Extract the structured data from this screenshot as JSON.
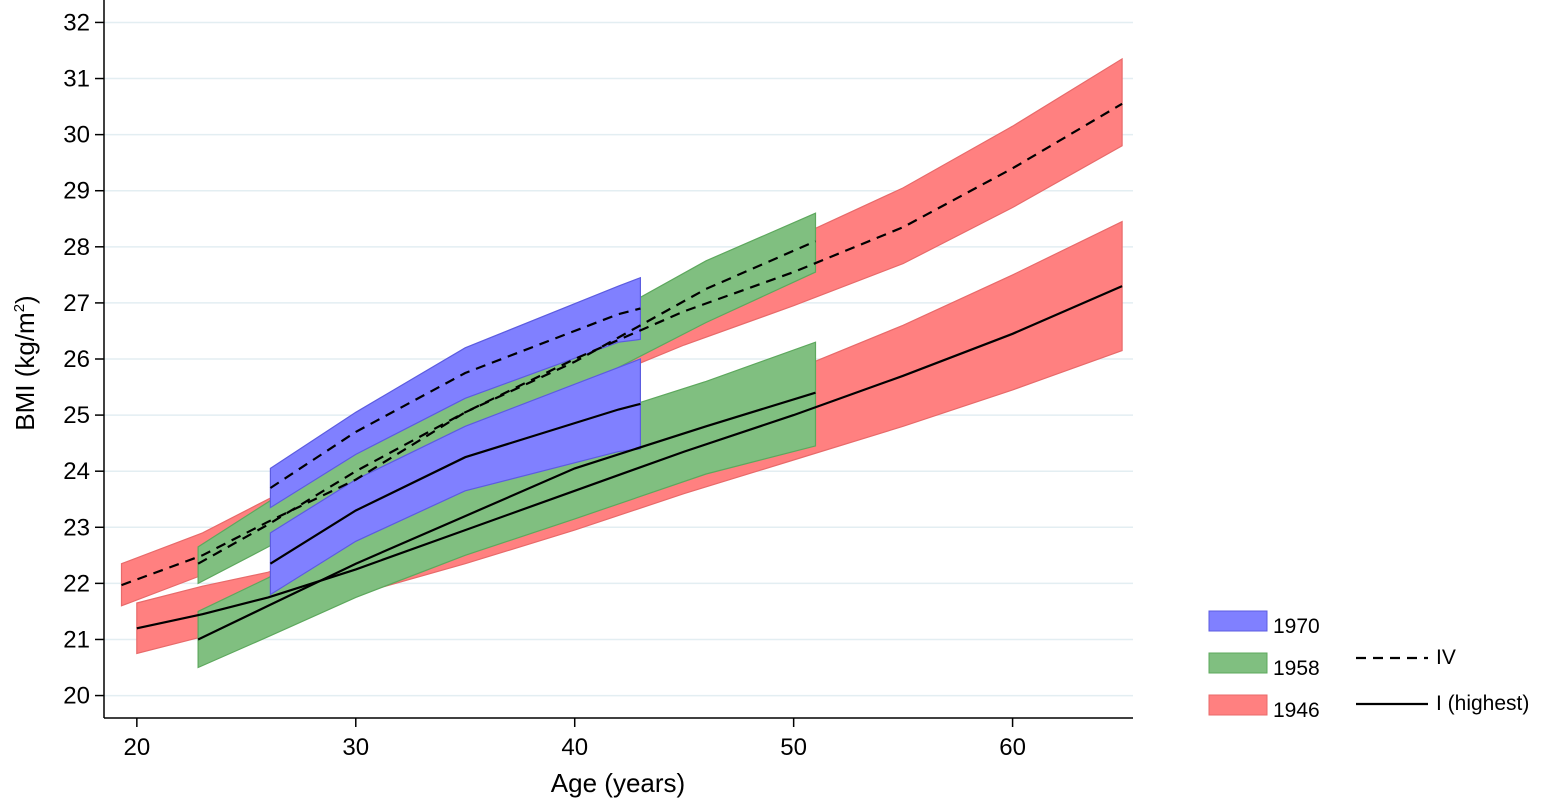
{
  "chart_data": {
    "type": "area",
    "xlabel": "Age (years)",
    "ylabel_main": "BMI (kg/m",
    "ylabel_sup": "2",
    "ylabel_close": ")",
    "xlim": [
      18.5,
      65.5
    ],
    "ylim": [
      19.6,
      32.4
    ],
    "xticks": [
      20,
      30,
      40,
      50,
      60
    ],
    "yticks": [
      20,
      21,
      22,
      23,
      24,
      25,
      26,
      27,
      28,
      29,
      30,
      31,
      32
    ],
    "grid": true,
    "legend_position": "bottom-right",
    "cohorts": [
      {
        "name": "1946",
        "color": "#ff8080",
        "edge": "#e86a6a",
        "bands": [
          {
            "line": "dashed",
            "x": [
              19.3,
              23,
              26,
              30,
              35,
              40,
              45,
              50,
              55,
              60,
              65
            ],
            "mid": [
              21.97,
              22.5,
              23.1,
              23.85,
              25.05,
              26.0,
              26.85,
              27.55,
              28.35,
              29.4,
              30.55
            ],
            "lower": [
              21.6,
              22.15,
              22.7,
              23.45,
              24.55,
              25.45,
              26.25,
              26.95,
              27.7,
              28.7,
              29.8
            ],
            "upper": [
              22.35,
              22.9,
              23.5,
              24.25,
              25.55,
              26.55,
              27.45,
              28.15,
              29.05,
              30.15,
              31.35
            ]
          },
          {
            "line": "solid",
            "x": [
              20,
              23,
              26,
              30,
              35,
              40,
              45,
              50,
              55,
              60,
              65
            ],
            "mid": [
              21.2,
              21.45,
              21.75,
              22.25,
              22.95,
              23.65,
              24.35,
              25.0,
              25.7,
              26.45,
              27.3
            ],
            "lower": [
              20.75,
              21.05,
              21.35,
              21.8,
              22.35,
              22.95,
              23.6,
              24.2,
              24.8,
              25.45,
              26.15
            ],
            "upper": [
              21.65,
              21.95,
              22.2,
              22.75,
              23.55,
              24.4,
              25.15,
              25.8,
              26.6,
              27.5,
              28.45
            ]
          }
        ]
      },
      {
        "name": "1958",
        "color": "#80bf80",
        "edge": "#5da85d",
        "bands": [
          {
            "line": "dashed",
            "x": [
              22.8,
              26,
              30,
              35,
              40,
              46,
              51
            ],
            "mid": [
              22.35,
              23.05,
              24.0,
              25.05,
              25.95,
              27.25,
              28.1
            ],
            "lower": [
              22.0,
              22.65,
              23.55,
              24.6,
              25.45,
              26.65,
              27.55
            ],
            "upper": [
              22.65,
              23.45,
              24.5,
              25.45,
              26.45,
              27.75,
              28.6
            ]
          },
          {
            "line": "solid",
            "x": [
              22.8,
              26,
              30,
              35,
              40,
              46,
              51
            ],
            "mid": [
              21.0,
              21.6,
              22.35,
              23.2,
              24.05,
              24.8,
              25.4
            ],
            "lower": [
              20.5,
              21.05,
              21.75,
              22.5,
              23.15,
              23.95,
              24.45
            ],
            "upper": [
              21.5,
              22.1,
              22.95,
              23.85,
              24.85,
              25.6,
              26.3
            ]
          }
        ]
      },
      {
        "name": "1970",
        "color": "#8080ff",
        "edge": "#5c5ce0",
        "bands": [
          {
            "line": "dashed",
            "x": [
              26.1,
              30,
              35,
              42,
              43
            ],
            "mid": [
              23.7,
              24.7,
              25.75,
              26.8,
              26.9
            ],
            "lower": [
              23.35,
              24.3,
              25.3,
              26.3,
              26.35
            ],
            "upper": [
              24.05,
              25.05,
              26.2,
              27.3,
              27.45
            ]
          },
          {
            "line": "solid",
            "x": [
              26.1,
              30,
              35,
              42,
              43
            ],
            "mid": [
              22.35,
              23.3,
              24.25,
              25.1,
              25.2
            ],
            "lower": [
              21.8,
              22.75,
              23.65,
              24.35,
              24.4
            ],
            "upper": [
              22.9,
              23.85,
              24.8,
              25.85,
              26.0
            ]
          }
        ]
      }
    ],
    "legend": {
      "cohorts": [
        "1970",
        "1958",
        "1946"
      ],
      "lines": [
        {
          "style": "dashed",
          "label": "IV"
        },
        {
          "style": "solid",
          "label": "I (highest)"
        }
      ]
    }
  }
}
